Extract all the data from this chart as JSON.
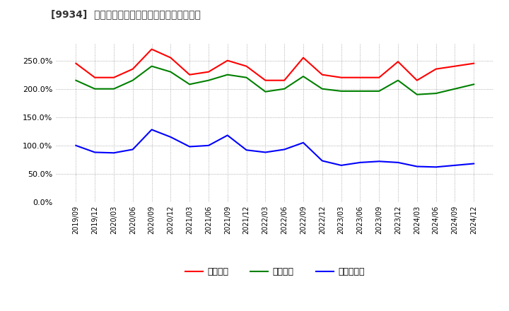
{
  "title": "[9934]  流動比率、当座比率、現預金比率の推移",
  "x_labels": [
    "2019/09",
    "2019/12",
    "2020/03",
    "2020/06",
    "2020/09",
    "2020/12",
    "2021/03",
    "2021/06",
    "2021/09",
    "2021/12",
    "2022/03",
    "2022/06",
    "2022/09",
    "2022/12",
    "2023/03",
    "2023/06",
    "2023/09",
    "2023/12",
    "2024/03",
    "2024/06",
    "2024/09",
    "2024/12"
  ],
  "ryudo": [
    245,
    220,
    220,
    235,
    270,
    255,
    225,
    230,
    250,
    240,
    215,
    215,
    255,
    225,
    220,
    220,
    220,
    248,
    215,
    235,
    240,
    245
  ],
  "toza": [
    215,
    200,
    200,
    215,
    240,
    230,
    208,
    215,
    225,
    220,
    195,
    200,
    222,
    200,
    196,
    196,
    196,
    215,
    190,
    192,
    200,
    208
  ],
  "genyo": [
    100,
    88,
    87,
    93,
    128,
    115,
    98,
    100,
    118,
    92,
    88,
    93,
    105,
    73,
    65,
    70,
    72,
    70,
    63,
    62,
    65,
    68
  ],
  "ryudo_color": "#ff0000",
  "toza_color": "#008000",
  "genyo_color": "#0000ff",
  "bg_color": "#ffffff",
  "plot_bg_color": "#ffffff",
  "grid_color": "#aaaaaa",
  "legend_labels": [
    "流動比率",
    "当座比率",
    "現預金比率"
  ],
  "title_prefix": "[9934]",
  "title_suffix": "流動比率、当座比率、現預金比率の推移",
  "ylim": [
    0,
    280
  ],
  "yticks": [
    0,
    50,
    100,
    150,
    200,
    250
  ]
}
